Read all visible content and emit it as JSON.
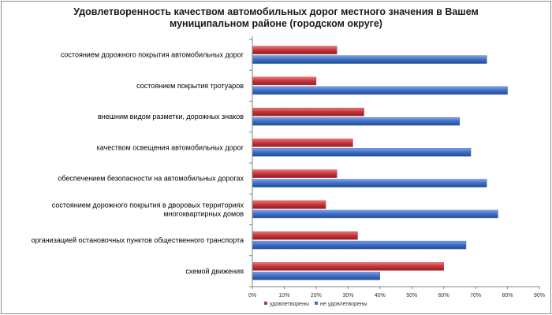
{
  "chart_data": {
    "type": "bar",
    "orientation": "horizontal",
    "title": [
      "Удовлетворенность качеством автомобильных дорог местного значения в Вашем",
      "муниципальном районе (городском округе)"
    ],
    "categories": [
      [
        "состоянием дорожного покрытия автомобильных дорог"
      ],
      [
        "состоянием покрытия тротуаров"
      ],
      [
        "внешним видом разметки, дорожных знаков"
      ],
      [
        "качеством освещения автомобильных дорог"
      ],
      [
        "обеспечением безопасности на автомобильных дорогах"
      ],
      [
        "состоянием дорожного покрытия в дворовых территориях",
        "многоквартирных домов"
      ],
      [
        "организацией остановочных пунктов общественного транспорта"
      ],
      [
        "схемой движения"
      ]
    ],
    "series": [
      {
        "name": "удовлетворены",
        "color": "#c0383c",
        "values": [
          26.5,
          20,
          35,
          31.5,
          26.5,
          23,
          33,
          60
        ]
      },
      {
        "name": "не удовлетворены",
        "color": "#3f6fc4",
        "values": [
          73.5,
          80,
          65,
          68.5,
          73.5,
          77,
          67,
          40
        ]
      }
    ],
    "xlim": [
      0,
      90
    ],
    "xticks": [
      "0%",
      "10%",
      "20%",
      "30%",
      "40%",
      "50%",
      "60%",
      "70%",
      "80%",
      "90%"
    ],
    "grid": false,
    "legend_position": "bottom"
  }
}
